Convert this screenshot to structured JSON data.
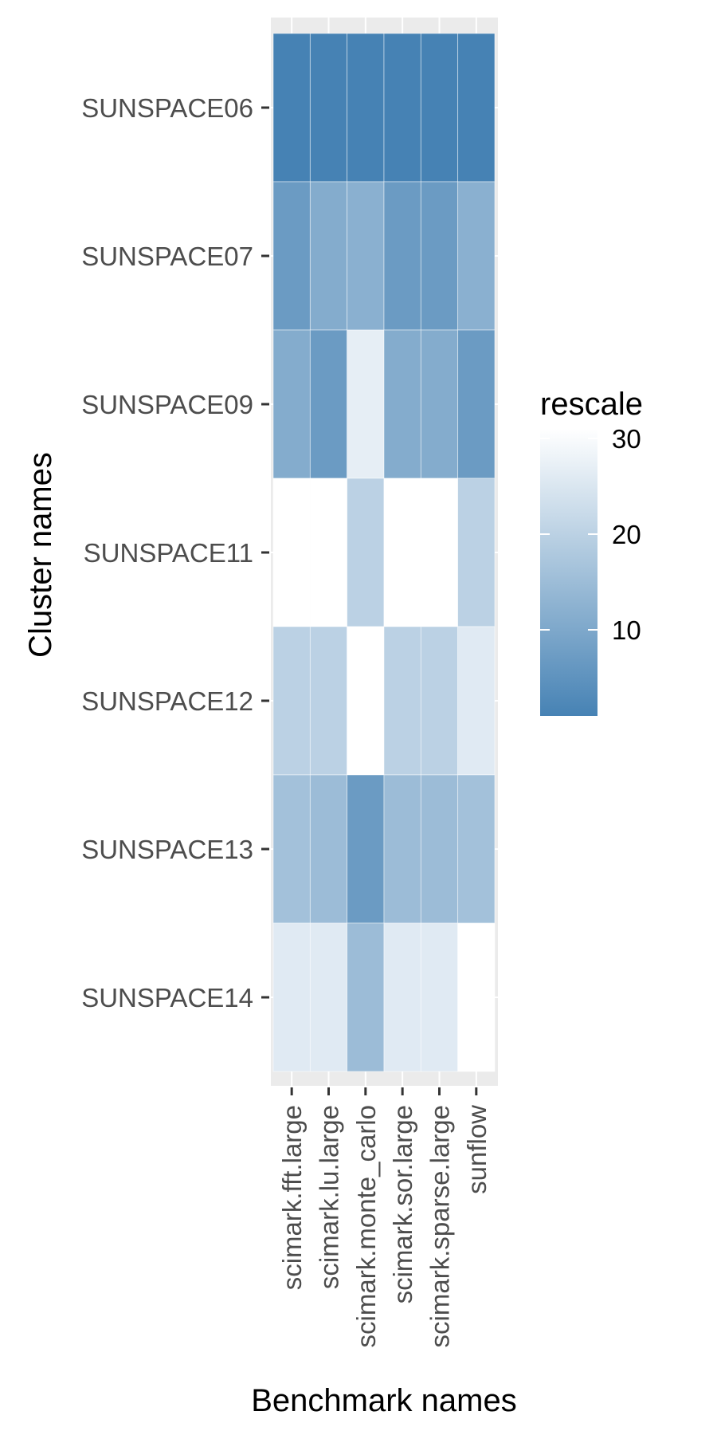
{
  "chart_data": {
    "type": "heatmap",
    "xlabel": "Benchmark names",
    "ylabel": "Cluster names",
    "x_categories": [
      "scimark.fft.large",
      "scimark.lu.large",
      "scimark.monte_carlo",
      "scimark.sor.large",
      "scimark.sparse.large",
      "sunflow"
    ],
    "y_categories": [
      "SUNSPACE06",
      "SUNSPACE07",
      "SUNSPACE09",
      "SUNSPACE11",
      "SUNSPACE12",
      "SUNSPACE13",
      "SUNSPACE14"
    ],
    "values": [
      [
        1,
        1,
        1,
        1,
        1,
        1
      ],
      [
        7,
        11,
        12,
        7,
        7,
        12
      ],
      [
        11,
        7,
        27,
        11,
        11,
        7
      ],
      [
        31,
        31,
        20,
        31,
        31,
        20
      ],
      [
        20,
        20,
        31,
        20,
        20,
        26
      ],
      [
        16,
        15,
        7,
        15,
        15,
        16
      ],
      [
        26,
        26,
        15,
        26,
        26,
        31
      ]
    ],
    "legend": {
      "title": "rescale",
      "ticks": [
        10,
        20,
        30
      ],
      "min": 1,
      "max": 31,
      "placement": "right"
    },
    "colors": {
      "low": "#4682b4",
      "high": "#ffffff",
      "panel_background": "#ebebeb"
    },
    "grid": true
  }
}
